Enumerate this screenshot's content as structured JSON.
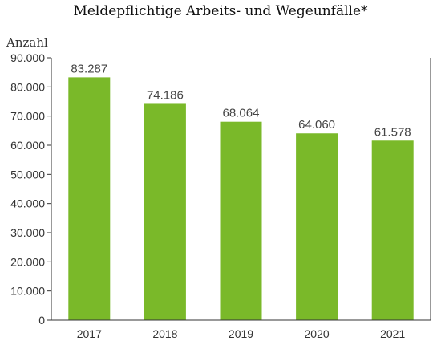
{
  "chart_data": {
    "type": "bar",
    "title": "Meldepflichtige Arbeits- und Wegeunfälle*",
    "ylabel": "Anzahl",
    "xlabel": "",
    "categories": [
      "2017",
      "2018",
      "2019",
      "2020",
      "2021"
    ],
    "values": [
      83287,
      74186,
      68064,
      64060,
      61578
    ],
    "value_labels": [
      "83.287",
      "74.186",
      "68.064",
      "64.060",
      "61.578"
    ],
    "ylim": [
      0,
      90000
    ],
    "y_ticks": [
      0,
      10000,
      20000,
      30000,
      40000,
      50000,
      60000,
      70000,
      80000,
      90000
    ],
    "y_tick_labels": [
      "0",
      "10.000",
      "20.000",
      "30.000",
      "40.000",
      "50.000",
      "60.000",
      "70.000",
      "80.000",
      "90.000"
    ],
    "grid": false,
    "legend": "none",
    "colors": {
      "bar": "#7ab929",
      "axis": "#333333"
    }
  }
}
